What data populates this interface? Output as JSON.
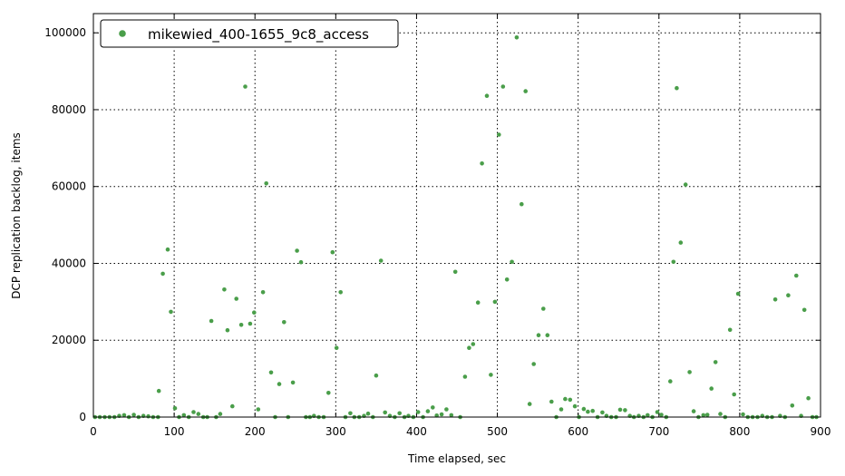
{
  "chart_data": {
    "type": "scatter",
    "xlabel": "Time elapsed, sec",
    "ylabel": "DCP replication backlog, items",
    "xlim": [
      0,
      900
    ],
    "ylim": [
      0,
      105000
    ],
    "x_ticks": [
      0,
      100,
      200,
      300,
      400,
      500,
      600,
      700,
      800,
      900
    ],
    "y_ticks": [
      0,
      20000,
      40000,
      60000,
      80000,
      100000
    ],
    "grid": true,
    "legend_position": "top-left",
    "series": [
      {
        "name": "mikewied_400-1655_9c8_access",
        "color": "#4a9e4a",
        "points": [
          [
            2,
            0
          ],
          [
            8,
            0
          ],
          [
            14,
            0
          ],
          [
            20,
            0
          ],
          [
            26,
            0
          ],
          [
            32,
            300
          ],
          [
            38,
            500
          ],
          [
            44,
            0
          ],
          [
            50,
            600
          ],
          [
            56,
            0
          ],
          [
            62,
            300
          ],
          [
            68,
            200
          ],
          [
            74,
            0
          ],
          [
            80,
            0
          ],
          [
            81,
            6800
          ],
          [
            86,
            37300
          ],
          [
            92,
            43600
          ],
          [
            96,
            27400
          ],
          [
            101,
            2300
          ],
          [
            106,
            0
          ],
          [
            112,
            500
          ],
          [
            118,
            0
          ],
          [
            124,
            1300
          ],
          [
            130,
            800
          ],
          [
            136,
            0
          ],
          [
            141,
            0
          ],
          [
            146,
            25000
          ],
          [
            152,
            0
          ],
          [
            157,
            800
          ],
          [
            162,
            33200
          ],
          [
            166,
            22600
          ],
          [
            172,
            2800
          ],
          [
            177,
            30800
          ],
          [
            183,
            24000
          ],
          [
            188,
            86000
          ],
          [
            194,
            24300
          ],
          [
            199,
            27200
          ],
          [
            204,
            2000
          ],
          [
            210,
            32500
          ],
          [
            214,
            60800
          ],
          [
            220,
            11600
          ],
          [
            225,
            0
          ],
          [
            230,
            8600
          ],
          [
            236,
            24700
          ],
          [
            241,
            0
          ],
          [
            247,
            9000
          ],
          [
            252,
            43300
          ],
          [
            257,
            40300
          ],
          [
            263,
            0
          ],
          [
            268,
            0
          ],
          [
            273,
            300
          ],
          [
            279,
            0
          ],
          [
            285,
            0
          ],
          [
            291,
            6300
          ],
          [
            296,
            42900
          ],
          [
            301,
            18000
          ],
          [
            306,
            32500
          ],
          [
            312,
            0
          ],
          [
            318,
            1000
          ],
          [
            323,
            0
          ],
          [
            329,
            0
          ],
          [
            335,
            300
          ],
          [
            340,
            900
          ],
          [
            346,
            0
          ],
          [
            350,
            10800
          ],
          [
            356,
            40700
          ],
          [
            361,
            1200
          ],
          [
            367,
            300
          ],
          [
            373,
            0
          ],
          [
            379,
            1000
          ],
          [
            385,
            0
          ],
          [
            390,
            300
          ],
          [
            396,
            0
          ],
          [
            402,
            1300
          ],
          [
            408,
            0
          ],
          [
            414,
            1500
          ],
          [
            420,
            2500
          ],
          [
            425,
            400
          ],
          [
            431,
            700
          ],
          [
            437,
            2000
          ],
          [
            443,
            500
          ],
          [
            448,
            37800
          ],
          [
            454,
            0
          ],
          [
            460,
            10500
          ],
          [
            465,
            18000
          ],
          [
            470,
            19000
          ],
          [
            476,
            29800
          ],
          [
            481,
            66000
          ],
          [
            487,
            83600
          ],
          [
            492,
            11000
          ],
          [
            497,
            30000
          ],
          [
            502,
            73500
          ],
          [
            507,
            86000
          ],
          [
            512,
            35800
          ],
          [
            518,
            40400
          ],
          [
            524,
            98800
          ],
          [
            530,
            55400
          ],
          [
            535,
            84800
          ],
          [
            540,
            3400
          ],
          [
            545,
            13800
          ],
          [
            551,
            21300
          ],
          [
            557,
            28200
          ],
          [
            562,
            21300
          ],
          [
            567,
            4000
          ],
          [
            573,
            0
          ],
          [
            579,
            2000
          ],
          [
            584,
            4700
          ],
          [
            590,
            4500
          ],
          [
            596,
            2800
          ],
          [
            601,
            0
          ],
          [
            607,
            2100
          ],
          [
            612,
            1400
          ],
          [
            618,
            1600
          ],
          [
            624,
            0
          ],
          [
            630,
            1200
          ],
          [
            635,
            300
          ],
          [
            641,
            0
          ],
          [
            647,
            0
          ],
          [
            652,
            1900
          ],
          [
            658,
            1800
          ],
          [
            664,
            300
          ],
          [
            669,
            0
          ],
          [
            675,
            300
          ],
          [
            681,
            0
          ],
          [
            686,
            500
          ],
          [
            692,
            0
          ],
          [
            698,
            1300
          ],
          [
            703,
            600
          ],
          [
            709,
            0
          ],
          [
            714,
            9300
          ],
          [
            718,
            40400
          ],
          [
            722,
            85600
          ],
          [
            727,
            45400
          ],
          [
            733,
            60500
          ],
          [
            738,
            11700
          ],
          [
            743,
            1500
          ],
          [
            749,
            0
          ],
          [
            755,
            500
          ],
          [
            760,
            600
          ],
          [
            765,
            7400
          ],
          [
            770,
            14300
          ],
          [
            776,
            800
          ],
          [
            782,
            0
          ],
          [
            788,
            22700
          ],
          [
            793,
            5900
          ],
          [
            798,
            32100
          ],
          [
            804,
            700
          ],
          [
            810,
            0
          ],
          [
            816,
            0
          ],
          [
            822,
            0
          ],
          [
            828,
            300
          ],
          [
            834,
            0
          ],
          [
            840,
            0
          ],
          [
            844,
            30600
          ],
          [
            850,
            300
          ],
          [
            856,
            0
          ],
          [
            860,
            31700
          ],
          [
            865,
            3000
          ],
          [
            870,
            36800
          ],
          [
            876,
            300
          ],
          [
            880,
            27900
          ],
          [
            885,
            4900
          ],
          [
            890,
            0
          ],
          [
            895,
            0
          ]
        ]
      }
    ]
  }
}
